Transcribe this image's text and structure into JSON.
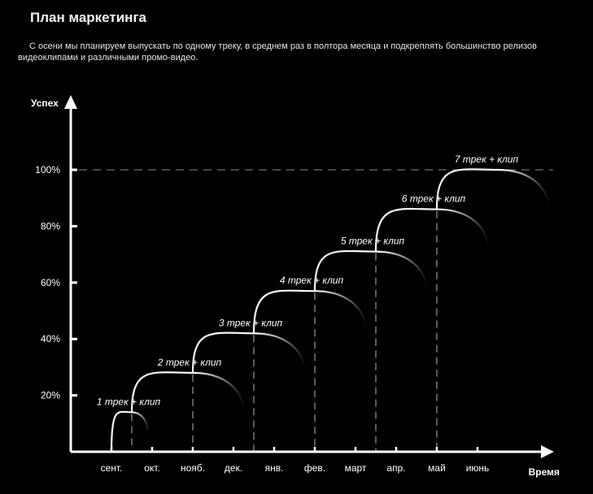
{
  "header": {
    "title": "План маркетинга",
    "description": "С осени мы планируем выпускать по одному треку, в среднем раз в полтора месяца и подкреплять большинство релизов видеоклипами и различными промо-видео."
  },
  "chart_data": {
    "type": "line",
    "ylabel": "Успех",
    "xlabel": "Время",
    "categories": [
      "сент.",
      "окт.",
      "нояб.",
      "дек.",
      "янв.",
      "фев.",
      "март",
      "апр.",
      "май",
      "июнь"
    ],
    "yticks": [
      "20%",
      "40%",
      "60%",
      "80%",
      "100%"
    ],
    "ylim": [
      0,
      100
    ],
    "reference_line": 100,
    "series": [
      {
        "points": [
          {
            "label": "1 трек + клип",
            "x": 1.5,
            "y": 14
          },
          {
            "label": "2 трек + клип",
            "x": 3.0,
            "y": 28
          },
          {
            "label": "3 трек + клип",
            "x": 4.5,
            "y": 42
          },
          {
            "label": "4 трек + клип",
            "x": 6.0,
            "y": 57
          },
          {
            "label": "5 трек + клип",
            "x": 7.5,
            "y": 71
          },
          {
            "label": "6 трек + клип",
            "x": 9.0,
            "y": 86
          },
          {
            "label": "7 трек + клип",
            "x": 10.5,
            "y": 100
          }
        ]
      }
    ]
  }
}
